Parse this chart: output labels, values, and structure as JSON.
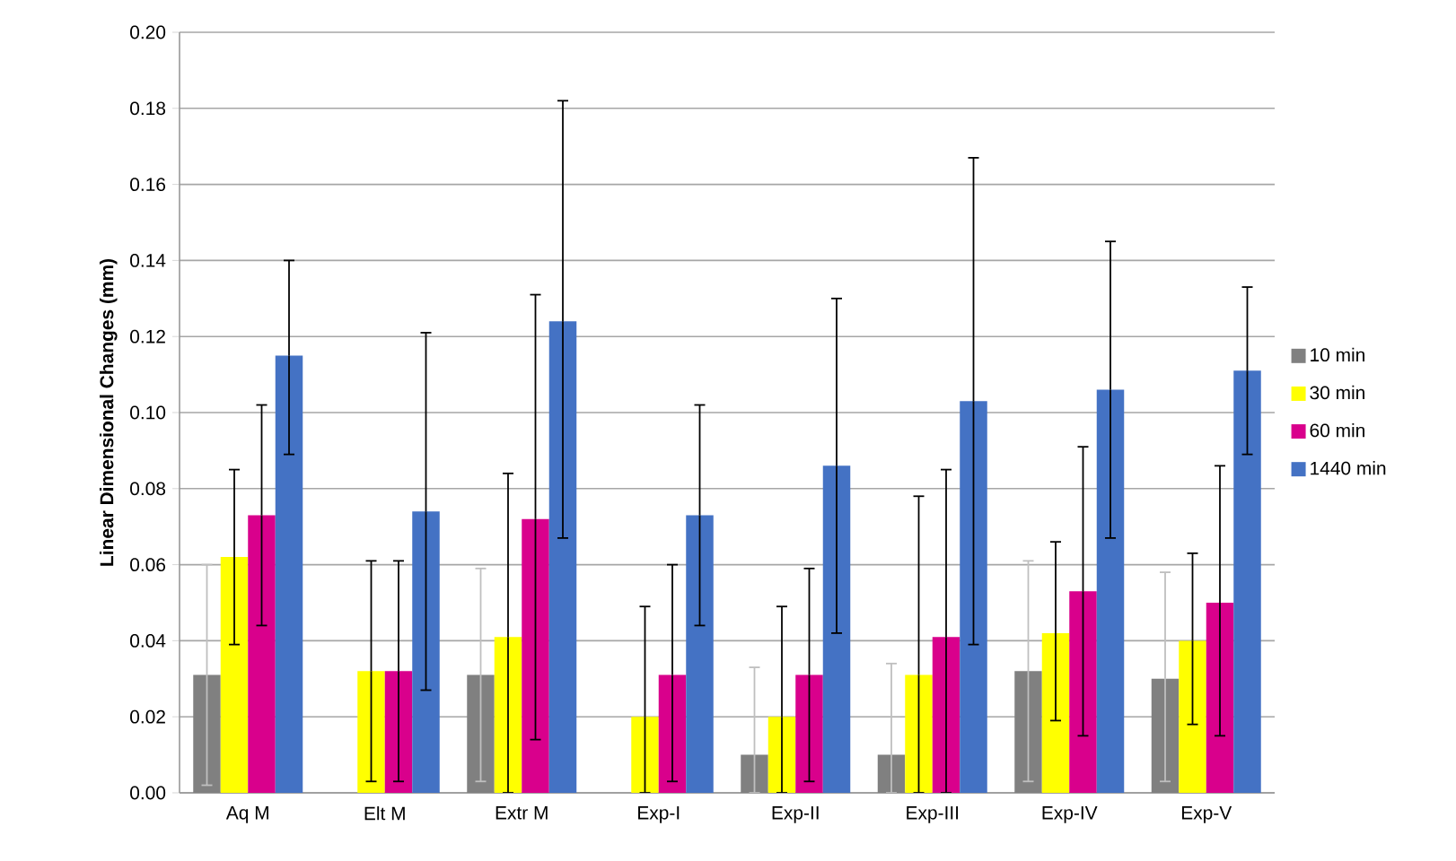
{
  "chart_data": {
    "type": "bar",
    "ylabel": "Linear Dimensional Changes (mm)",
    "categories": [
      "Aq M",
      "Elt M",
      "Extr M",
      "Exp-I",
      "Exp-II",
      "Exp-III",
      "Exp-IV",
      "Exp-V"
    ],
    "series": [
      {
        "name": "10 min",
        "color": "#808080",
        "values": [
          0.031,
          0,
          0.031,
          0,
          0.01,
          0.01,
          0.032,
          0.03
        ],
        "errors": [
          [
            0.002,
            0.06
          ],
          null,
          [
            0.003,
            0.059
          ],
          null,
          [
            0,
            0.033
          ],
          [
            0,
            0.034
          ],
          [
            0.003,
            0.061
          ],
          [
            0.003,
            0.058
          ]
        ]
      },
      {
        "name": "30 min",
        "color": "#ffff00",
        "values": [
          0.062,
          0.032,
          0.041,
          0.02,
          0.02,
          0.031,
          0.042,
          0.04
        ],
        "errors": [
          [
            0.039,
            0.085
          ],
          [
            0.003,
            0.061
          ],
          [
            0,
            0.084
          ],
          [
            0,
            0.049
          ],
          [
            0,
            0.049
          ],
          [
            0,
            0.078
          ],
          [
            0.019,
            0.066
          ],
          [
            0.018,
            0.063
          ]
        ]
      },
      {
        "name": "60 min",
        "color": "#d9008c",
        "values": [
          0.073,
          0.032,
          0.072,
          0.031,
          0.031,
          0.041,
          0.053,
          0.05
        ],
        "errors": [
          [
            0.044,
            0.102
          ],
          [
            0.003,
            0.061
          ],
          [
            0.014,
            0.131
          ],
          [
            0.003,
            0.06
          ],
          [
            0.003,
            0.059
          ],
          [
            0,
            0.085
          ],
          [
            0.015,
            0.091
          ],
          [
            0.015,
            0.086
          ]
        ]
      },
      {
        "name": "1440 min",
        "color": "#4472c4",
        "values": [
          0.115,
          0.074,
          0.124,
          0.073,
          0.086,
          0.103,
          0.106,
          0.111
        ],
        "errors": [
          [
            0.089,
            0.14
          ],
          [
            0.027,
            0.121
          ],
          [
            0.067,
            0.182
          ],
          [
            0.044,
            0.102
          ],
          [
            0.042,
            0.13
          ],
          [
            0.039,
            0.167
          ],
          [
            0.067,
            0.145
          ],
          [
            0.089,
            0.133
          ]
        ]
      }
    ],
    "ylim": [
      0,
      0.2
    ],
    "yticks": [
      {
        "value": 0,
        "label": "0.00"
      },
      {
        "value": 0.02,
        "label": "0.02"
      },
      {
        "value": 0.04,
        "label": "0.04"
      },
      {
        "value": 0.06,
        "label": "0.06"
      },
      {
        "value": 0.08,
        "label": "0.08"
      },
      {
        "value": 0.1,
        "label": "0.10"
      },
      {
        "value": 0.12,
        "label": "0.12"
      },
      {
        "value": 0.14,
        "label": "0.14"
      },
      {
        "value": 0.16,
        "label": "0.16"
      },
      {
        "value": 0.18,
        "label": "0.18"
      },
      {
        "value": 0.2,
        "label": "0.20"
      }
    ],
    "grid": "y",
    "legend": "right"
  }
}
